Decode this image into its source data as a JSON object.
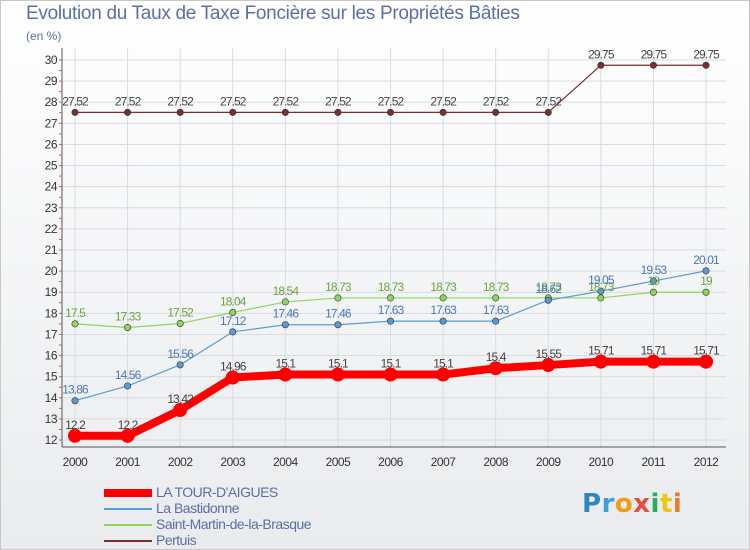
{
  "chart_data": {
    "type": "line",
    "title": "Evolution du Taux de Taxe Foncière sur les Propriétés Bâties",
    "subtitle": "(en %)",
    "x": [
      "2000",
      "2001",
      "2002",
      "2003",
      "2004",
      "2005",
      "2006",
      "2007",
      "2008",
      "2009",
      "2010",
      "2011",
      "2012"
    ],
    "ylim": [
      12,
      30
    ],
    "yticks": [
      12,
      13,
      14,
      15,
      16,
      17,
      18,
      19,
      20,
      21,
      22,
      23,
      24,
      25,
      26,
      27,
      28,
      29,
      30
    ],
    "grid": true,
    "legend": "bottom-left",
    "series": [
      {
        "name": "LA TOUR-D'AIGUES",
        "color": "#ff0000",
        "values": [
          12.2,
          12.2,
          13.42,
          14.96,
          15.1,
          15.1,
          15.1,
          15.1,
          15.4,
          15.55,
          15.71,
          15.71,
          15.71
        ],
        "labels": [
          "12.2",
          "12.2",
          "13.42",
          "14.96",
          "15.1",
          "15.1",
          "15.1",
          "15.1",
          "15.4",
          "15.55",
          "15.71",
          "15.71",
          "15.71"
        ]
      },
      {
        "name": "La Bastidonne",
        "color": "#5b9bd5",
        "values": [
          13.86,
          14.56,
          15.56,
          17.12,
          17.46,
          17.46,
          17.63,
          17.63,
          17.63,
          18.62,
          19.05,
          19.53,
          20.01
        ],
        "labels": [
          "13.86",
          "14.56",
          "15.56",
          "17.12",
          "17.46",
          "17.46",
          "17.63",
          "17.63",
          "17.63",
          "18.62",
          "19.05",
          "19.53",
          "20.01"
        ]
      },
      {
        "name": "Saint-Martin-de-la-Brasque",
        "color": "#8cd65a",
        "values": [
          17.5,
          17.33,
          17.52,
          18.04,
          18.54,
          18.73,
          18.73,
          18.73,
          18.73,
          18.73,
          18.73,
          19,
          19
        ],
        "labels": [
          "17.5",
          "17.33",
          "17.52",
          "18.04",
          "18.54",
          "18.73",
          "18.73",
          "18.73",
          "18.73",
          "18.73",
          "18.73",
          "19",
          "19"
        ]
      },
      {
        "name": "Pertuis",
        "color": "#7b2f2f",
        "values": [
          27.52,
          27.52,
          27.52,
          27.52,
          27.52,
          27.52,
          27.52,
          27.52,
          27.52,
          27.52,
          29.75,
          29.75,
          29.75
        ],
        "labels": [
          "27.52",
          "27.52",
          "27.52",
          "27.52",
          "27.52",
          "27.52",
          "27.52",
          "27.52",
          "27.52",
          "27.52",
          "29.75",
          "29.75",
          "29.75"
        ]
      }
    ]
  },
  "brand": {
    "letters": [
      "P",
      "r",
      "o",
      "x",
      "i",
      "t",
      "i"
    ],
    "colors": [
      "#2e86c1",
      "#3aa0dc",
      "#f39c12",
      "#e74c3c",
      "#27ae60",
      "#f1c40f",
      "#e67e22"
    ]
  }
}
